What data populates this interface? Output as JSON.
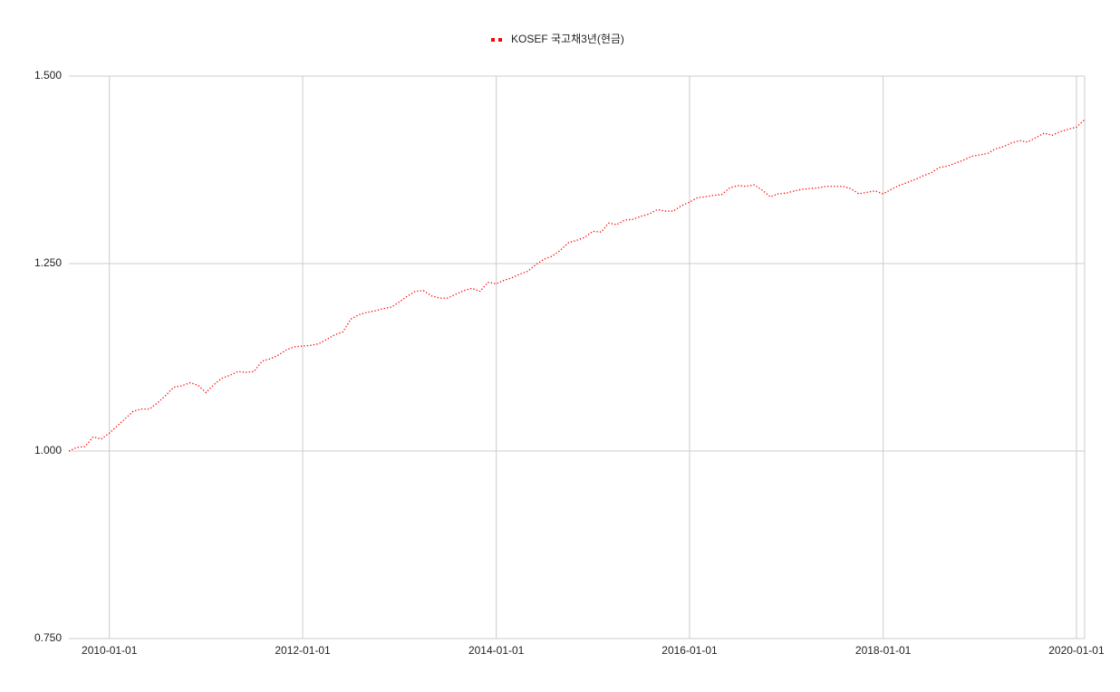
{
  "chart_data": {
    "type": "line",
    "legend": "top",
    "grid": true,
    "x": [
      "2009-08-01",
      "2009-09-01",
      "2009-10-01",
      "2009-11-01",
      "2009-12-01",
      "2010-01-01",
      "2010-02-01",
      "2010-03-01",
      "2010-04-01",
      "2010-05-01",
      "2010-06-01",
      "2010-07-01",
      "2010-08-01",
      "2010-09-01",
      "2010-10-01",
      "2010-11-01",
      "2010-12-01",
      "2011-01-01",
      "2011-02-01",
      "2011-03-01",
      "2011-04-01",
      "2011-05-01",
      "2011-06-01",
      "2011-07-01",
      "2011-08-01",
      "2011-09-01",
      "2011-10-01",
      "2011-11-01",
      "2011-12-01",
      "2012-01-01",
      "2012-02-01",
      "2012-03-01",
      "2012-04-01",
      "2012-05-01",
      "2012-06-01",
      "2012-07-01",
      "2012-08-01",
      "2012-09-01",
      "2012-10-01",
      "2012-11-01",
      "2012-12-01",
      "2013-01-01",
      "2013-02-01",
      "2013-03-01",
      "2013-04-01",
      "2013-05-01",
      "2013-06-01",
      "2013-07-01",
      "2013-08-01",
      "2013-09-01",
      "2013-10-01",
      "2013-11-01",
      "2013-12-01",
      "2014-01-01",
      "2014-02-01",
      "2014-03-01",
      "2014-04-01",
      "2014-05-01",
      "2014-06-01",
      "2014-07-01",
      "2014-08-01",
      "2014-09-01",
      "2014-10-01",
      "2014-11-01",
      "2014-12-01",
      "2015-01-01",
      "2015-02-01",
      "2015-03-01",
      "2015-04-01",
      "2015-05-01",
      "2015-06-01",
      "2015-07-01",
      "2015-08-01",
      "2015-09-01",
      "2015-10-01",
      "2015-11-01",
      "2015-12-01",
      "2016-01-01",
      "2016-02-01",
      "2016-03-01",
      "2016-04-01",
      "2016-05-01",
      "2016-06-01",
      "2016-07-01",
      "2016-08-01",
      "2016-09-01",
      "2016-10-01",
      "2016-11-01",
      "2016-12-01",
      "2017-01-01",
      "2017-02-01",
      "2017-03-01",
      "2017-04-01",
      "2017-05-01",
      "2017-06-01",
      "2017-07-01",
      "2017-08-01",
      "2017-09-01",
      "2017-10-01",
      "2017-11-01",
      "2017-12-01",
      "2018-01-01",
      "2018-02-01",
      "2018-03-01",
      "2018-04-01",
      "2018-05-01",
      "2018-06-01",
      "2018-07-01",
      "2018-08-01",
      "2018-09-01",
      "2018-10-01",
      "2018-11-01",
      "2018-12-01",
      "2019-01-01",
      "2019-02-01",
      "2019-03-01",
      "2019-04-01",
      "2019-05-01",
      "2019-06-01",
      "2019-07-01",
      "2019-08-01",
      "2019-09-01",
      "2019-10-01",
      "2019-11-01",
      "2019-12-01",
      "2020-01-01",
      "2020-02-01"
    ],
    "series": [
      {
        "name": "KOSEF 국고채3년(현금)",
        "color": "#ff0000",
        "values": [
          1.0,
          1.005,
          1.006,
          1.019,
          1.016,
          1.024,
          1.034,
          1.043,
          1.053,
          1.056,
          1.056,
          1.064,
          1.074,
          1.085,
          1.087,
          1.091,
          1.088,
          1.078,
          1.089,
          1.097,
          1.101,
          1.106,
          1.105,
          1.106,
          1.12,
          1.123,
          1.128,
          1.135,
          1.139,
          1.14,
          1.141,
          1.143,
          1.149,
          1.155,
          1.159,
          1.176,
          1.182,
          1.185,
          1.187,
          1.19,
          1.192,
          1.199,
          1.207,
          1.213,
          1.214,
          1.207,
          1.204,
          1.204,
          1.209,
          1.214,
          1.217,
          1.213,
          1.225,
          1.223,
          1.228,
          1.231,
          1.236,
          1.24,
          1.249,
          1.256,
          1.26,
          1.268,
          1.278,
          1.281,
          1.285,
          1.293,
          1.292,
          1.304,
          1.302,
          1.308,
          1.309,
          1.313,
          1.316,
          1.322,
          1.32,
          1.32,
          1.327,
          1.332,
          1.338,
          1.339,
          1.341,
          1.342,
          1.351,
          1.354,
          1.353,
          1.355,
          1.348,
          1.339,
          1.343,
          1.344,
          1.347,
          1.349,
          1.35,
          1.351,
          1.353,
          1.353,
          1.353,
          1.35,
          1.343,
          1.345,
          1.347,
          1.343,
          1.349,
          1.354,
          1.358,
          1.362,
          1.367,
          1.371,
          1.378,
          1.38,
          1.384,
          1.388,
          1.393,
          1.395,
          1.397,
          1.403,
          1.406,
          1.411,
          1.414,
          1.412,
          1.418,
          1.424,
          1.421,
          1.426,
          1.429,
          1.432,
          1.442
        ]
      }
    ],
    "xlim": [
      "2009-08-01",
      "2020-02-01"
    ],
    "xticks": [
      "2010-01-01",
      "2012-01-01",
      "2014-01-01",
      "2016-01-01",
      "2018-01-01",
      "2020-01-01"
    ],
    "ylim": [
      0.75,
      1.5
    ],
    "yticks": [
      {
        "value": 0.75,
        "label": "0.750"
      },
      {
        "value": 1,
        "label": "1.000"
      },
      {
        "value": 1.25,
        "label": "1.250"
      },
      {
        "value": 1.5,
        "label": "1.500"
      }
    ]
  }
}
